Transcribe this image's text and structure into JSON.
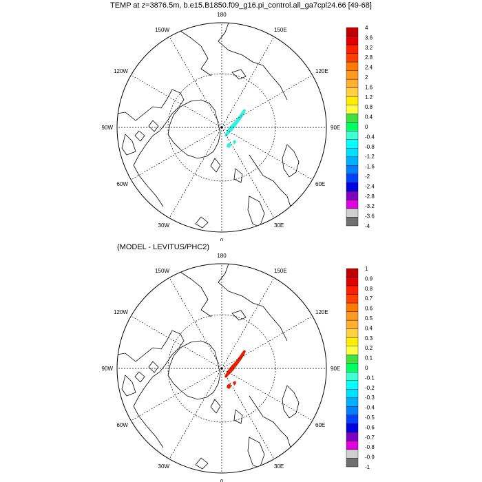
{
  "panels": [
    {
      "title": "TEMP at z=3876.5m, b.e15.B1850.f09_g16.pi_control.all_ga7cpl24.66 [49-68]",
      "lon_labels": [
        "180",
        "150E",
        "120E",
        "90E",
        "60E",
        "30E",
        "0",
        "30W",
        "60W",
        "90W",
        "120W",
        "150W"
      ],
      "colorbar": {
        "labels": [
          "4",
          "3.6",
          "3.2",
          "2.8",
          "2.4",
          "2",
          "1.6",
          "1.2",
          "0.8",
          "0.4",
          "0",
          "-0.4",
          "-0.8",
          "-1.2",
          "-1.6",
          "-2",
          "-2.4",
          "-2.8",
          "-3.2",
          "-3.6",
          "-4"
        ],
        "colors": [
          "#c00000",
          "#e00000",
          "#ff2000",
          "#ff4000",
          "#ff7a00",
          "#ff9a20",
          "#ffb030",
          "#ffd040",
          "#ffee00",
          "#ffff40",
          "#40e040",
          "#00ff60",
          "#40ffd0",
          "#00ffff",
          "#00e0ff",
          "#00b0ff",
          "#0080ff",
          "#0040ff",
          "#0000e0",
          "#8000c0",
          "#e000e0",
          "#d0d0d0",
          "#707070"
        ]
      },
      "anomaly_color": "#30f0e0"
    },
    {
      "title": "(MODEL - LEVITUS/PHC2)",
      "lon_labels": [
        "180",
        "150E",
        "120E",
        "90E",
        "60E",
        "30E",
        "0",
        "30W",
        "60W",
        "90W",
        "120W",
        "150W"
      ],
      "colorbar": {
        "labels": [
          "1",
          "0.9",
          "0.8",
          "0.7",
          "0.6",
          "0.5",
          "0.4",
          "0.3",
          "0.2",
          "0.1",
          "0",
          "-0.1",
          "-0.2",
          "-0.3",
          "-0.4",
          "-0.5",
          "-0.6",
          "-0.7",
          "-0.8",
          "-0.9",
          "-1"
        ],
        "colors": [
          "#c00000",
          "#e00000",
          "#ff2000",
          "#ff4000",
          "#ff7a00",
          "#ff9a20",
          "#ffb030",
          "#ffd040",
          "#ffee00",
          "#ffff40",
          "#40e040",
          "#00ff60",
          "#40ffd0",
          "#00ffff",
          "#00e0ff",
          "#00b0ff",
          "#0080ff",
          "#0040ff",
          "#0000e0",
          "#8000c0",
          "#e000e0",
          "#d0d0d0",
          "#707070"
        ]
      },
      "anomaly_color": "#e82000"
    }
  ]
}
